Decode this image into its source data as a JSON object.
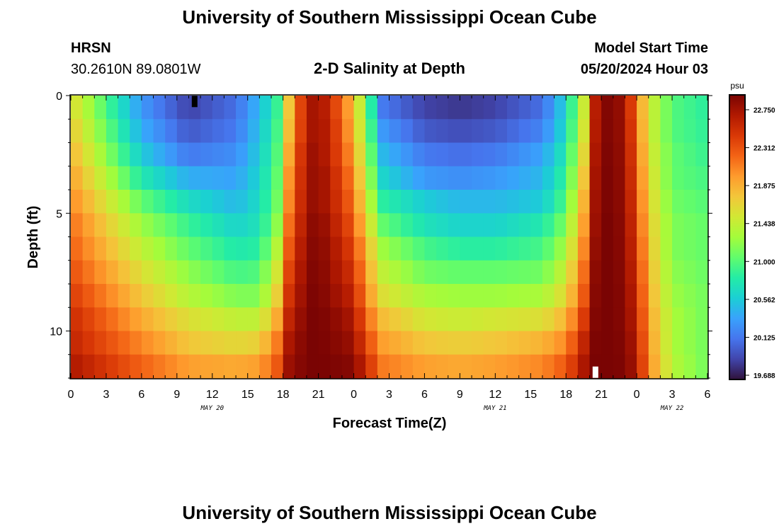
{
  "header": {
    "title": "University of Southern Mississippi Ocean Cube",
    "station": "HRSN",
    "coords": "30.2610N  89.0801W",
    "subtitle": "2-D Salinity at Depth",
    "model_start_label": "Model Start Time",
    "model_start_value": "05/20/2024 Hour 03"
  },
  "footer": {
    "title": "University of Southern Mississippi Ocean Cube"
  },
  "chart_data": {
    "type": "heatmap",
    "title": "2-D Salinity at Depth",
    "xlabel": "Forecast Time(Z)",
    "ylabel": "Depth (ft)",
    "x_range_hours": [
      0,
      54
    ],
    "y_range_ft": [
      0,
      12
    ],
    "x_tick_labels": [
      "0",
      "3",
      "6",
      "9",
      "12",
      "15",
      "18",
      "21",
      "0",
      "3",
      "6",
      "9",
      "12",
      "15",
      "18",
      "21",
      "0",
      "3",
      "6"
    ],
    "y_tick_labels": [
      "0",
      "5",
      "10"
    ],
    "y_tick_values": [
      0,
      5,
      10
    ],
    "date_labels": [
      {
        "text": "MAY 20",
        "hour": 12
      },
      {
        "text": "MAY 21",
        "hour": 36
      },
      {
        "text": "MAY 22",
        "hour": 51
      }
    ],
    "colorbar": {
      "unit": "psu",
      "min": 19.688,
      "max": 22.75,
      "tick_labels": [
        "22.750",
        "22.312",
        "21.875",
        "21.438",
        "21.000",
        "20.562",
        "20.125",
        "19.688"
      ]
    },
    "colors": [
      "#30123b",
      "#4145ab",
      "#4675ed",
      "#39a2fc",
      "#1bcfd4",
      "#24eca6",
      "#61fc6c",
      "#a4fc3b",
      "#d1e834",
      "#f3c63a",
      "#fe9b2d",
      "#f36315",
      "#d93806",
      "#b11901",
      "#7a0403"
    ],
    "depth_levels_ft": [
      0.5,
      1.5,
      2.5,
      3.5,
      4.5,
      5.5,
      6.5,
      7.5,
      8.5,
      9.5,
      10.5,
      11.5
    ],
    "time_hours": [
      0,
      6,
      10,
      14,
      16,
      17.5,
      18.5,
      20,
      21,
      22,
      24,
      25,
      26.5,
      30,
      33,
      36,
      40,
      42,
      43.5,
      44.5,
      45.5,
      47,
      48,
      49,
      51,
      54
    ],
    "salinity_psu": [
      [
        21.55,
        20.3,
        19.9,
        20.1,
        20.45,
        20.85,
        21.65,
        22.55,
        22.6,
        22.4,
        21.7,
        21.1,
        20.15,
        19.9,
        19.85,
        19.9,
        20.1,
        20.6,
        21.4,
        22.5,
        22.72,
        22.62,
        22.0,
        21.45,
        20.95,
        20.8
      ],
      [
        21.65,
        20.4,
        20.0,
        20.15,
        20.5,
        20.9,
        21.7,
        22.55,
        22.6,
        22.45,
        21.75,
        21.15,
        20.3,
        20.0,
        19.95,
        20.0,
        20.2,
        20.65,
        21.45,
        22.52,
        22.72,
        22.63,
        22.05,
        21.45,
        20.95,
        20.82
      ],
      [
        21.75,
        20.55,
        20.15,
        20.25,
        20.55,
        20.95,
        21.8,
        22.6,
        22.62,
        22.45,
        21.85,
        21.25,
        20.45,
        20.15,
        20.1,
        20.15,
        20.35,
        20.75,
        21.55,
        22.55,
        22.73,
        22.64,
        22.1,
        21.5,
        21.0,
        20.85
      ],
      [
        21.85,
        20.75,
        20.4,
        20.35,
        20.6,
        21.0,
        21.9,
        22.6,
        22.65,
        22.5,
        21.95,
        21.35,
        20.6,
        20.3,
        20.25,
        20.3,
        20.45,
        20.85,
        21.65,
        22.58,
        22.74,
        22.65,
        22.15,
        21.55,
        21.0,
        20.9
      ],
      [
        21.95,
        21.0,
        20.65,
        20.45,
        20.65,
        21.05,
        21.95,
        22.62,
        22.65,
        22.5,
        22.05,
        21.45,
        20.8,
        20.55,
        20.45,
        20.45,
        20.55,
        20.95,
        21.75,
        22.6,
        22.74,
        22.66,
        22.2,
        21.6,
        21.05,
        20.95
      ],
      [
        22.05,
        21.2,
        20.85,
        20.6,
        20.7,
        21.15,
        22.05,
        22.65,
        22.7,
        22.55,
        22.15,
        21.6,
        21.0,
        20.7,
        20.6,
        20.6,
        20.75,
        21.1,
        21.85,
        22.62,
        22.75,
        22.67,
        22.25,
        21.65,
        21.1,
        21.0
      ],
      [
        22.12,
        21.35,
        21.0,
        20.75,
        20.8,
        21.3,
        22.15,
        22.68,
        22.72,
        22.6,
        22.25,
        21.75,
        21.2,
        20.9,
        20.8,
        20.8,
        20.9,
        21.25,
        21.95,
        22.65,
        22.75,
        22.68,
        22.3,
        21.7,
        21.1,
        21.0
      ],
      [
        22.2,
        21.5,
        21.15,
        20.9,
        20.95,
        21.45,
        22.25,
        22.7,
        22.74,
        22.62,
        22.35,
        21.85,
        21.35,
        21.05,
        21.0,
        21.0,
        21.05,
        21.4,
        22.05,
        22.68,
        22.75,
        22.69,
        22.35,
        21.75,
        21.15,
        21.02
      ],
      [
        22.3,
        21.65,
        21.3,
        21.1,
        21.1,
        21.6,
        22.35,
        22.72,
        22.75,
        22.65,
        22.45,
        21.95,
        21.5,
        21.25,
        21.2,
        21.2,
        21.25,
        21.55,
        22.15,
        22.7,
        22.75,
        22.7,
        22.4,
        21.8,
        21.2,
        21.05
      ],
      [
        22.4,
        21.8,
        21.5,
        21.35,
        21.35,
        21.8,
        22.45,
        22.74,
        22.75,
        22.7,
        22.55,
        22.1,
        21.7,
        21.45,
        21.4,
        21.45,
        21.5,
        21.75,
        22.3,
        22.72,
        22.75,
        22.7,
        22.45,
        21.85,
        21.25,
        21.05
      ],
      [
        22.45,
        21.95,
        21.65,
        21.55,
        21.6,
        22.0,
        22.55,
        22.75,
        22.75,
        22.72,
        22.62,
        22.25,
        21.85,
        21.65,
        21.6,
        21.65,
        21.75,
        21.95,
        22.45,
        22.74,
        22.75,
        22.72,
        22.5,
        21.9,
        21.25,
        21.05
      ],
      [
        22.55,
        22.1,
        21.85,
        21.8,
        21.85,
        22.15,
        22.62,
        22.75,
        22.75,
        22.74,
        22.7,
        22.4,
        22.0,
        21.85,
        21.8,
        21.85,
        21.95,
        22.15,
        22.55,
        22.75,
        22.75,
        22.73,
        22.55,
        21.95,
        21.3,
        21.05
      ]
    ],
    "markers": [
      {
        "hour": 10.5,
        "depth_ft": 0.25,
        "color": "#000000"
      },
      {
        "hour": 44.5,
        "depth_ft": 11.75,
        "color": "#ffffff"
      }
    ]
  }
}
